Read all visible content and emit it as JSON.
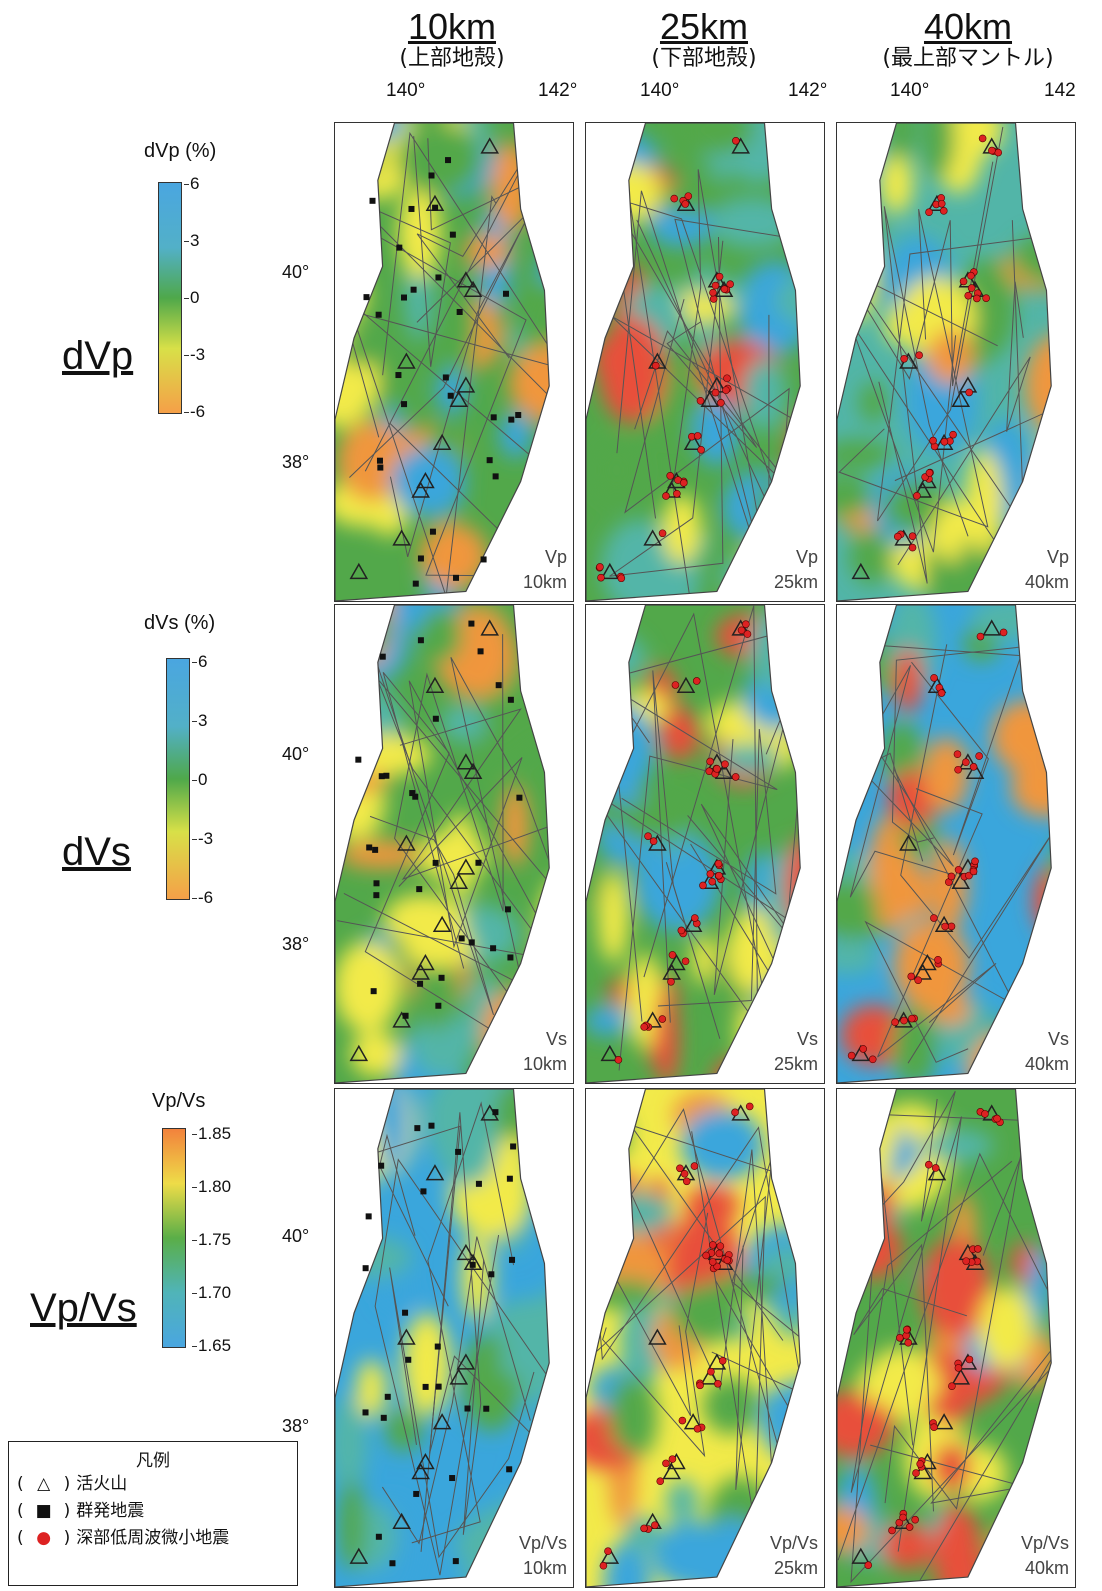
{
  "columns": [
    {
      "depth": "10km",
      "sub": "(上部地殻)"
    },
    {
      "depth": "25km",
      "sub": "(下部地殻)"
    },
    {
      "depth": "40km",
      "sub": "(最上部マントル)"
    }
  ],
  "lon_labels": [
    "140°",
    "142°",
    "140°",
    "142°",
    "140°",
    "142"
  ],
  "lat_labels": [
    "40°",
    "38°"
  ],
  "rows": [
    {
      "label": "dVp",
      "colorbar": {
        "title": "dVp (%)",
        "ticks": [
          "6",
          "3",
          "0",
          "-3",
          "-6"
        ]
      },
      "panels": [
        {
          "line1": "Vp",
          "line2": "10km"
        },
        {
          "line1": "Vp",
          "line2": "25km"
        },
        {
          "line1": "Vp",
          "line2": "40km"
        }
      ]
    },
    {
      "label": "dVs",
      "colorbar": {
        "title": "dVs (%)",
        "ticks": [
          "6",
          "3",
          "0",
          "-3",
          "-6"
        ]
      },
      "panels": [
        {
          "line1": "Vs",
          "line2": "10km"
        },
        {
          "line1": "Vs",
          "line2": "25km"
        },
        {
          "line1": "Vs",
          "line2": "40km"
        }
      ]
    },
    {
      "label": "Vp/Vs",
      "colorbar": {
        "title": "Vp/Vs",
        "ticks": [
          "1.85",
          "1.80",
          "1.75",
          "1.70",
          "1.65"
        ]
      },
      "panels": [
        {
          "line1": "Vp/Vs",
          "line2": "10km"
        },
        {
          "line1": "Vp/Vs",
          "line2": "25km"
        },
        {
          "line1": "Vp/Vs",
          "line2": "40km"
        }
      ]
    }
  ],
  "legend": {
    "title": "凡例",
    "items": [
      {
        "open": "(",
        "symbol": "△",
        "close": ")",
        "label": "活火山"
      },
      {
        "open": "(",
        "symbol": "■",
        "close": ")",
        "label": "群発地震"
      },
      {
        "open": "(",
        "symbol": "●",
        "close": ")",
        "label": "深部低周波微小地震"
      }
    ]
  },
  "colors": {
    "blue": "#3aa6dc",
    "teal": "#52b5a8",
    "green": "#52a84a",
    "yellow": "#f2ea4a",
    "orange": "#f0963c",
    "red": "#e8503a",
    "gray": "#d8d8d8",
    "symbol_red": "#dd2222"
  }
}
